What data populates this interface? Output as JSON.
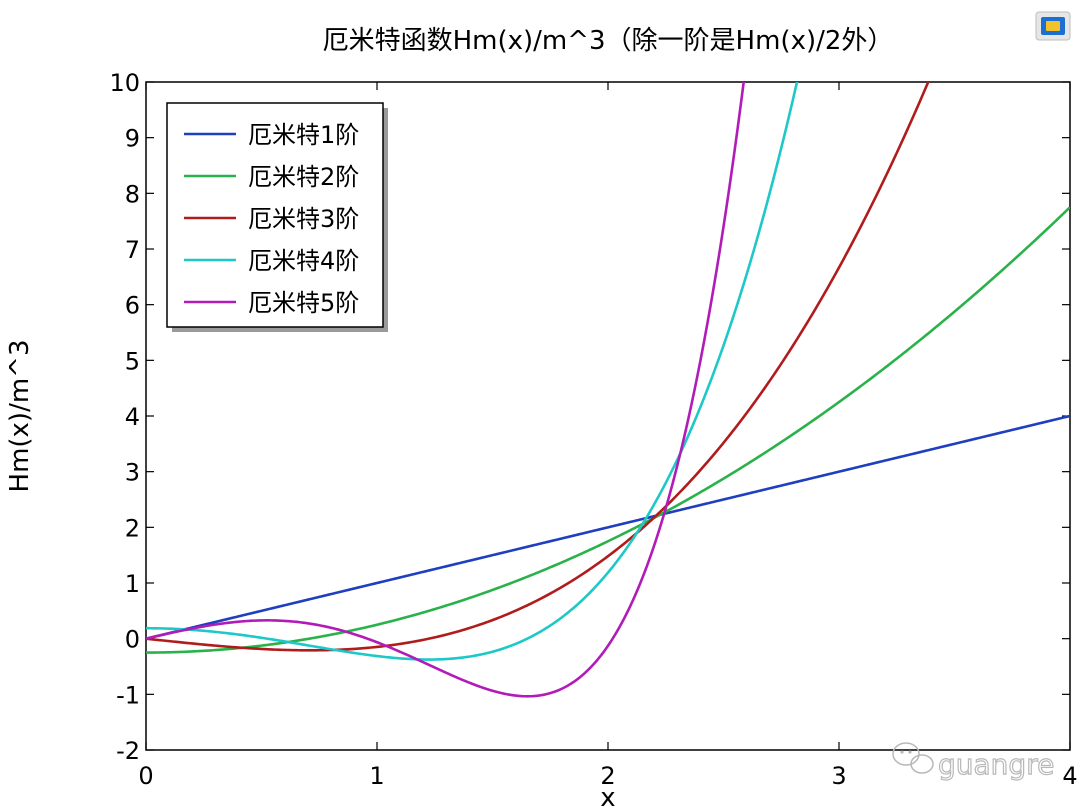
{
  "chart_data": {
    "type": "line",
    "title": "厄米特函数Hm(x)/m^3（除一阶是Hm(x)/2外）",
    "xlabel": "x",
    "ylabel": "Hm(x)/m^3",
    "xlim": [
      0,
      4
    ],
    "ylim": [
      -2,
      10
    ],
    "xticks": [
      0,
      1,
      2,
      3,
      4
    ],
    "yticks": [
      -2,
      -1,
      0,
      1,
      2,
      3,
      4,
      5,
      6,
      7,
      8,
      9,
      10
    ],
    "grid": false,
    "legend_position": "top-left",
    "series": [
      {
        "name": "厄米特1阶",
        "order": 1,
        "color": "#1f3fbf"
      },
      {
        "name": "厄米特2阶",
        "order": 2,
        "color": "#2ab24a"
      },
      {
        "name": "厄米特3阶",
        "order": 3,
        "color": "#b01c1c"
      },
      {
        "name": "厄米特4阶",
        "order": 4,
        "color": "#1fc8c8"
      },
      {
        "name": "厄米特5阶",
        "order": 5,
        "color": "#b11cb8"
      }
    ]
  },
  "watermark": {
    "text": "guangre",
    "icon": "wechat-icon"
  },
  "corner_icon": "app-logo-icon"
}
